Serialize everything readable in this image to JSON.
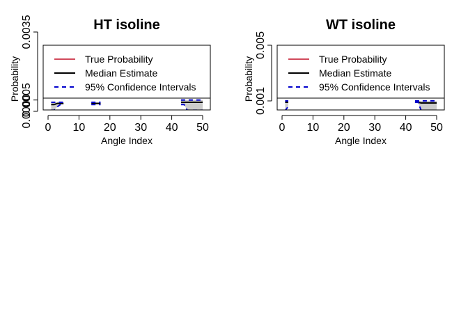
{
  "chart_data": [
    {
      "type": "line",
      "title": "HT isoline",
      "xlabel": "Angle Index",
      "ylabel": "Probability",
      "xlim": [
        0,
        50
      ],
      "xticks": [
        0,
        10,
        20,
        30,
        40,
        50
      ],
      "ylim": [
        0,
        0.0035
      ],
      "yticks": [
        {
          "value": 0,
          "label": "0.0000"
        },
        0.0005,
        0.0035
      ],
      "legend": [
        {
          "name": "True Probability",
          "color": "#d1495b"
        },
        {
          "name": "Median Estimate",
          "color": "#000000"
        },
        {
          "name": "95% Confidence Intervals",
          "color": "#0000cc"
        }
      ],
      "series": [
        {
          "color": "#000000",
          "x": [
            1,
            2,
            3,
            4,
            5,
            6,
            14,
            15,
            16,
            17,
            18,
            43,
            44,
            45,
            46,
            47,
            48,
            49,
            50
          ],
          "values": [
            0.0003,
            0.0003,
            0.00035,
            0.00035,
            0.00035,
            null,
            0.00035,
            0.00035,
            0.00035,
            0.00035,
            null,
            0.0004,
            0.0004,
            0.0004,
            0.0004,
            0.0004,
            0.0004,
            0.0004,
            0.0004
          ]
        },
        {
          "color": "#0000cc",
          "x": [
            1,
            2,
            3,
            4,
            5,
            6,
            14,
            15,
            16,
            17,
            18,
            43,
            44,
            45,
            46,
            47,
            48,
            49,
            50
          ],
          "values": [
            5e-05,
            5e-05,
            0.0002,
            0.0003,
            0.0003,
            null,
            0.0003,
            0.0003,
            0.0003,
            0.0003,
            null,
            0.0003,
            0.0003,
            5e-05,
            5e-05,
            5e-05,
            5e-05,
            5e-05,
            5e-05
          ]
        },
        {
          "color": "#0000cc",
          "x": [
            1,
            2,
            3,
            4,
            5,
            6,
            14,
            15,
            16,
            17,
            18,
            43,
            44,
            45,
            46,
            47,
            48,
            49,
            50
          ],
          "values": [
            0.0004,
            0.0004,
            0.0004,
            0.0004,
            0.0004,
            null,
            0.0004,
            0.0004,
            0.0004,
            0.0004,
            null,
            0.0005,
            0.0005,
            0.0005,
            0.0005,
            0.0005,
            0.0005,
            0.0005,
            0.0005
          ]
        }
      ]
    },
    {
      "type": "line",
      "title": "WT isoline",
      "xlabel": "Angle Index",
      "ylabel": "Probability",
      "xlim": [
        0,
        50
      ],
      "xticks": [
        0,
        10,
        20,
        30,
        40,
        50
      ],
      "ylim": [
        0,
        0.005
      ],
      "yticks": [
        0.001,
        0.005
      ],
      "legend": [
        {
          "name": "True Probability",
          "color": "#d1495b"
        },
        {
          "name": "Median Estimate",
          "color": "#000000"
        },
        {
          "name": "95% Confidence Intervals",
          "color": "#0000cc"
        }
      ],
      "series": [
        {
          "color": "#000000",
          "x": [
            1,
            2,
            3,
            43,
            44,
            45,
            46,
            47,
            48,
            49,
            50
          ],
          "values": [
            0.0009,
            0.0009,
            null,
            0.0009,
            0.0009,
            0.00085,
            0.00085,
            0.00085,
            0.00085,
            0.00085,
            0.00085
          ]
        },
        {
          "color": "#0000cc",
          "x": [
            1,
            2,
            3,
            43,
            44,
            45,
            46,
            47,
            48,
            49,
            50
          ],
          "values": [
            0.0003,
            0.0006,
            null,
            0.0009,
            0.0009,
            0.0003,
            0.0003,
            0.0003,
            0.0003,
            0.0003,
            0.0003
          ]
        },
        {
          "color": "#0000cc",
          "x": [
            1,
            2,
            3,
            43,
            44,
            45,
            46,
            47,
            48,
            49,
            50
          ],
          "values": [
            0.001,
            0.001,
            null,
            0.001,
            0.001,
            0.001,
            0.001,
            0.001,
            0.001,
            0.001,
            0.001
          ]
        }
      ]
    }
  ]
}
